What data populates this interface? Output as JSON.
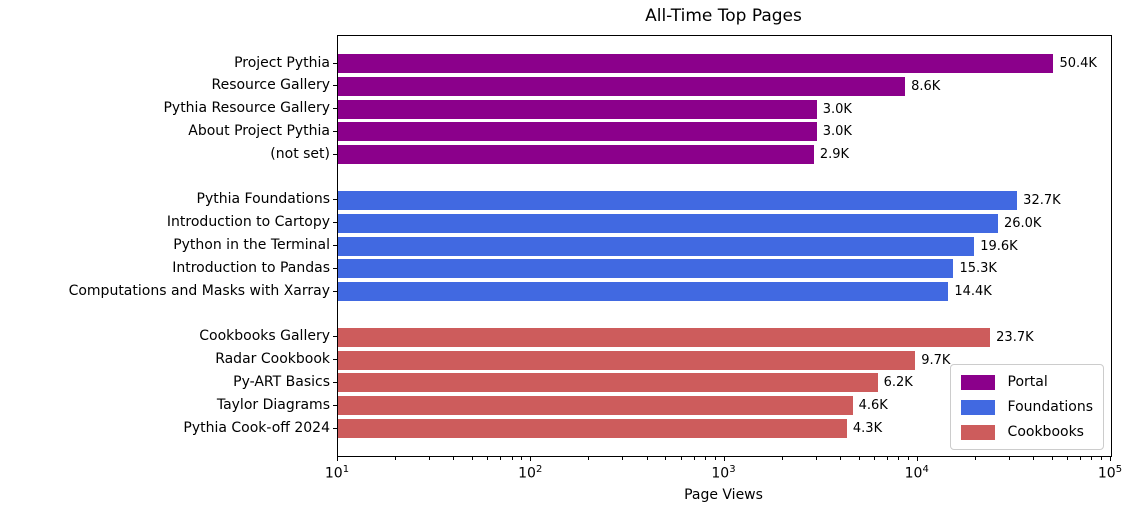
{
  "chart_data": {
    "type": "bar",
    "orientation": "horizontal",
    "title": "All-Time Top Pages",
    "xlabel": "Page Views",
    "xscale": "log",
    "xlim": [
      10,
      100000
    ],
    "x_major_tick_exponents": [
      1,
      2,
      3,
      4,
      5
    ],
    "grid": false,
    "legend_position": "lower right",
    "groups": [
      {
        "name": "Portal",
        "color": "#8B008B",
        "items": [
          {
            "label": "Project Pythia",
            "value": 50400,
            "value_label": "50.4K"
          },
          {
            "label": "Resource Gallery",
            "value": 8600,
            "value_label": "8.6K"
          },
          {
            "label": "Pythia Resource Gallery",
            "value": 3000,
            "value_label": "3.0K"
          },
          {
            "label": "About Project Pythia",
            "value": 3000,
            "value_label": "3.0K"
          },
          {
            "label": "(not set)",
            "value": 2900,
            "value_label": "2.9K"
          }
        ]
      },
      {
        "name": "Foundations",
        "color": "#4169E1",
        "items": [
          {
            "label": "Pythia Foundations",
            "value": 32700,
            "value_label": "32.7K"
          },
          {
            "label": "Introduction to Cartopy",
            "value": 26000,
            "value_label": "26.0K"
          },
          {
            "label": "Python in the Terminal",
            "value": 19600,
            "value_label": "19.6K"
          },
          {
            "label": "Introduction to Pandas",
            "value": 15300,
            "value_label": "15.3K"
          },
          {
            "label": "Computations and Masks with Xarray",
            "value": 14400,
            "value_label": "14.4K"
          }
        ]
      },
      {
        "name": "Cookbooks",
        "color": "#CD5C5C",
        "items": [
          {
            "label": "Cookbooks Gallery",
            "value": 23700,
            "value_label": "23.7K"
          },
          {
            "label": "Radar Cookbook",
            "value": 9700,
            "value_label": "9.7K"
          },
          {
            "label": "Py-ART Basics",
            "value": 6200,
            "value_label": "6.2K"
          },
          {
            "label": "Taylor Diagrams",
            "value": 4600,
            "value_label": "4.6K"
          },
          {
            "label": "Pythia Cook-off 2024",
            "value": 4300,
            "value_label": "4.3K"
          }
        ]
      }
    ],
    "legend": [
      {
        "label": "Portal",
        "color": "#8B008B"
      },
      {
        "label": "Foundations",
        "color": "#4169E1"
      },
      {
        "label": "Cookbooks",
        "color": "#CD5C5C"
      }
    ]
  }
}
